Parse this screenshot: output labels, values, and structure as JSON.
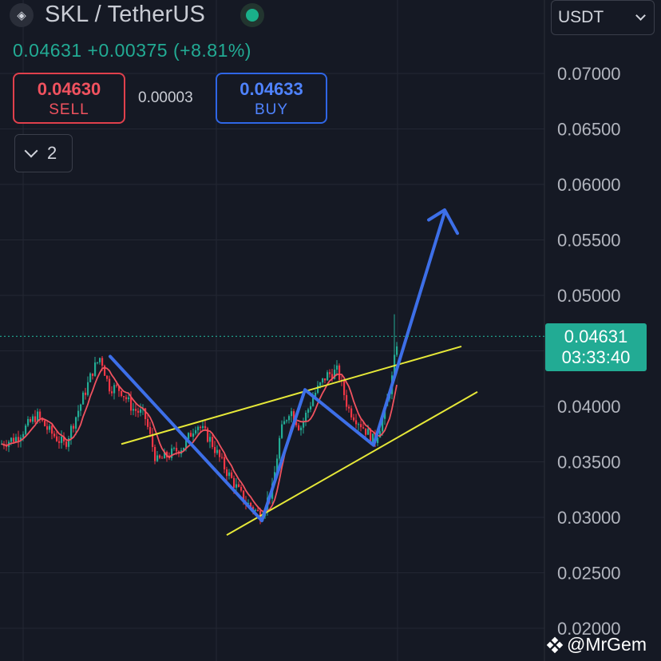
{
  "header": {
    "pair": "SKL / TetherUS",
    "last_price": "0.04631",
    "change": "+0.00375",
    "change_pct": "(+8.81%)"
  },
  "trade": {
    "sell_price": "0.04630",
    "sell_label": "SELL",
    "spread": "0.00003",
    "buy_price": "0.04633",
    "buy_label": "BUY"
  },
  "collapse_count": "2",
  "currency": "USDT",
  "price_tag": {
    "price": "0.04631",
    "countdown": "03:33:40"
  },
  "watermark": "@MrGem",
  "colors": {
    "background": "#151924",
    "up": "#22ab94",
    "down": "#f23645",
    "ma_line": "#f0525f",
    "pattern_line": "#3d6fe8",
    "trend_line": "#e6e838",
    "grid": "#232733"
  },
  "icons": {
    "logo": "skale-logo-icon",
    "market_status": "market-open-dot-icon",
    "collapse": "chevron-down-icon",
    "currency": "chevron-down-icon"
  },
  "chart_data": {
    "type": "candlestick",
    "y_axis": {
      "ticks": [
        "0.07000",
        "0.06500",
        "0.06000",
        "0.05500",
        "0.05000",
        "0.04000",
        "0.03500",
        "0.03000",
        "0.02500",
        "0.02000"
      ],
      "tick_values": [
        0.07,
        0.065,
        0.06,
        0.055,
        0.05,
        0.04,
        0.035,
        0.03,
        0.025,
        0.02
      ],
      "ylim": [
        0.0195,
        0.0755
      ]
    },
    "current_price": 0.04631,
    "price_path": [
      [
        0,
        0.0366
      ],
      [
        20,
        0.0372
      ],
      [
        45,
        0.0392
      ],
      [
        60,
        0.0378
      ],
      [
        80,
        0.0365
      ],
      [
        100,
        0.0402
      ],
      [
        115,
        0.0432
      ],
      [
        125,
        0.0445
      ],
      [
        135,
        0.0418
      ],
      [
        150,
        0.0415
      ],
      [
        165,
        0.0398
      ],
      [
        180,
        0.0392
      ],
      [
        195,
        0.035
      ],
      [
        215,
        0.0358
      ],
      [
        230,
        0.0365
      ],
      [
        245,
        0.0385
      ],
      [
        262,
        0.037
      ],
      [
        280,
        0.0345
      ],
      [
        305,
        0.0315
      ],
      [
        325,
        0.0302
      ],
      [
        340,
        0.0325
      ],
      [
        350,
        0.0375
      ],
      [
        362,
        0.0398
      ],
      [
        375,
        0.038
      ],
      [
        392,
        0.041
      ],
      [
        408,
        0.0428
      ],
      [
        422,
        0.0432
      ],
      [
        435,
        0.0398
      ],
      [
        450,
        0.0385
      ],
      [
        468,
        0.0368
      ],
      [
        480,
        0.0392
      ],
      [
        490,
        0.0425
      ],
      [
        497,
        0.0463
      ]
    ],
    "pattern_line": [
      [
        138,
        0.0445
      ],
      [
        328,
        0.0297
      ],
      [
        382,
        0.0415
      ],
      [
        468,
        0.0365
      ],
      [
        557,
        0.0575
      ]
    ],
    "arrow_head": [
      [
        537,
        0.0568
      ],
      [
        557,
        0.0577
      ],
      [
        573,
        0.0556
      ]
    ],
    "trend_lines": [
      [
        [
          152,
          0.0366
        ],
        [
          578,
          0.0454
        ]
      ],
      [
        [
          284,
          0.0284
        ],
        [
          598,
          0.0413
        ]
      ]
    ]
  }
}
